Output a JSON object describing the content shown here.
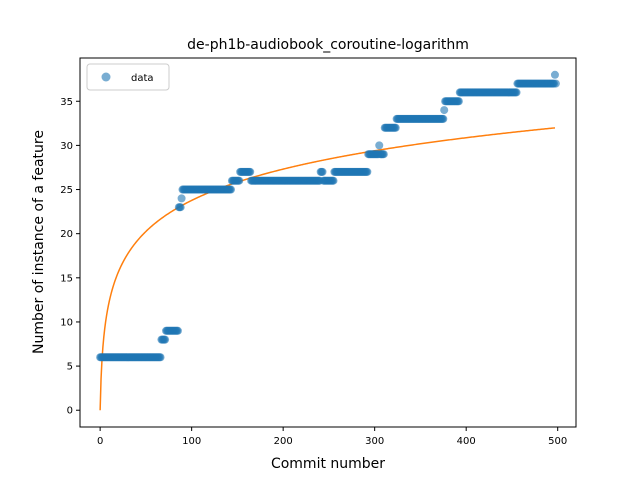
{
  "chart_data": {
    "type": "scatter",
    "title": "de-ph1b-audiobook_coroutine-logarithm",
    "xlabel": "Commit number",
    "ylabel": "Number of instance of a feature",
    "xlim": [
      -22,
      520
    ],
    "ylim": [
      -1.9,
      39.9
    ],
    "xticks": [
      0,
      100,
      200,
      300,
      400,
      500
    ],
    "yticks": [
      0,
      5,
      10,
      15,
      20,
      25,
      30,
      35
    ],
    "grid": false,
    "legend": {
      "position": "upper-left",
      "entries": [
        "data"
      ]
    },
    "colors": {
      "data": "#1f77b4",
      "fit": "#ff7f0e"
    },
    "series": [
      {
        "name": "data",
        "kind": "scatter",
        "steps": [
          [
            0,
            6
          ],
          [
            1,
            6
          ],
          [
            66,
            6
          ],
          [
            67,
            8
          ],
          [
            71,
            8
          ],
          [
            72,
            9
          ],
          [
            85,
            9
          ],
          [
            86,
            23
          ],
          [
            88,
            23
          ],
          [
            89,
            24
          ],
          [
            90,
            25
          ],
          [
            143,
            25
          ],
          [
            144,
            26
          ],
          [
            152,
            26
          ],
          [
            153,
            27
          ],
          [
            164,
            27
          ],
          [
            165,
            26
          ],
          [
            240,
            26
          ],
          [
            241,
            27
          ],
          [
            243,
            27
          ],
          [
            244,
            26
          ],
          [
            255,
            26
          ],
          [
            256,
            27
          ],
          [
            292,
            27
          ],
          [
            293,
            29
          ],
          [
            304,
            29
          ],
          [
            305,
            30
          ],
          [
            306,
            29
          ],
          [
            310,
            29
          ],
          [
            311,
            32
          ],
          [
            323,
            32
          ],
          [
            324,
            33
          ],
          [
            375,
            33
          ],
          [
            376,
            34
          ],
          [
            377,
            35
          ],
          [
            392,
            35
          ],
          [
            393,
            36
          ],
          [
            455,
            36
          ],
          [
            456,
            37
          ],
          [
            496,
            37
          ],
          [
            497,
            38
          ],
          [
            498,
            37
          ]
        ]
      },
      {
        "name": "",
        "kind": "line",
        "function": "a*ln(x+1)",
        "a": 5.15,
        "x_range": [
          0,
          497
        ]
      }
    ]
  }
}
